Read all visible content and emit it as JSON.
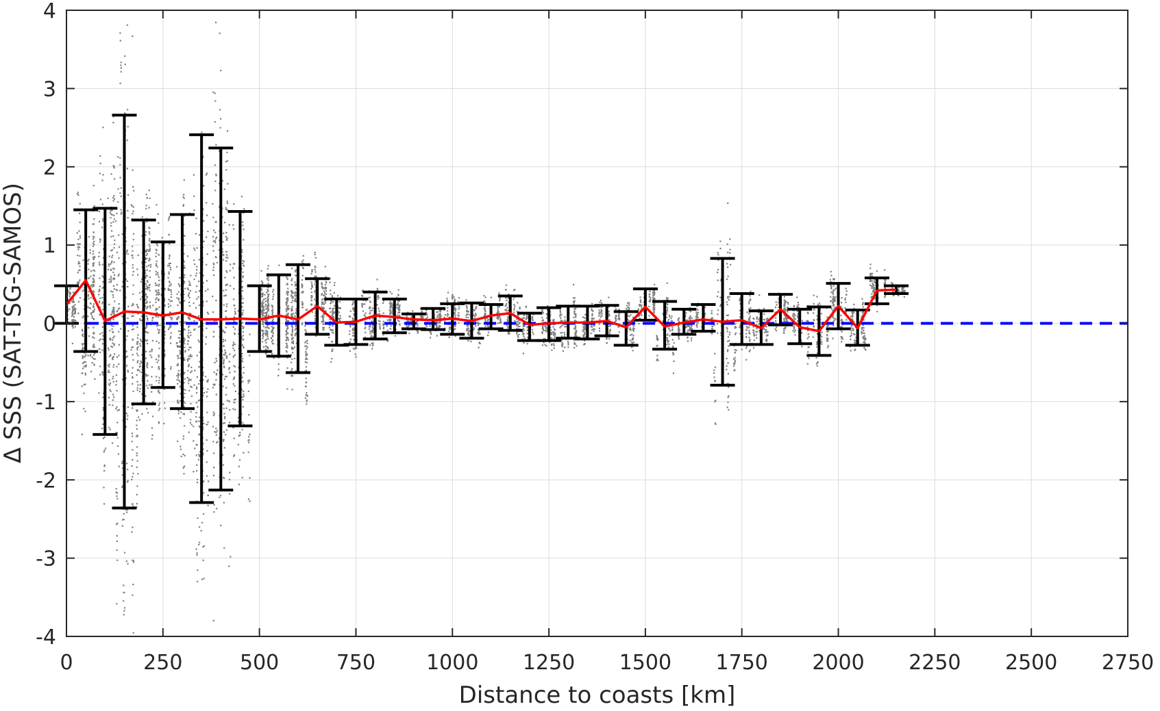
{
  "chart_data": {
    "type": "scatter",
    "xlabel": "Distance to coasts [km]",
    "ylabel": "Δ SSS (SAT-TSG-SAMOS)",
    "xlim": [
      0,
      2750
    ],
    "ylim": [
      -4,
      4
    ],
    "x_ticks": [
      "0",
      "250",
      "500",
      "750",
      "1000",
      "1250",
      "1500",
      "1750",
      "2000",
      "2250",
      "2500",
      "2750"
    ],
    "x_tick_values": [
      0,
      250,
      500,
      750,
      1000,
      1250,
      1500,
      1750,
      2000,
      2250,
      2500,
      2750
    ],
    "y_ticks": [
      "-4",
      "-3",
      "-2",
      "-1",
      "0",
      "1",
      "2",
      "3",
      "4"
    ],
    "y_tick_values": [
      -4,
      -3,
      -2,
      -1,
      0,
      1,
      2,
      3,
      4
    ],
    "grid": true,
    "colors": {
      "scatter": "#808080",
      "errorbar": "#000000",
      "mean_line": "#ff0000",
      "zero_line": "#0000ff",
      "grid": "#dcdcdc"
    },
    "zero_reference": {
      "y": 0,
      "style": "dashed"
    },
    "binned_stats": {
      "x": [
        0,
        50,
        100,
        150,
        200,
        250,
        300,
        350,
        400,
        450,
        500,
        550,
        600,
        650,
        700,
        750,
        800,
        850,
        900,
        950,
        1000,
        1050,
        1100,
        1150,
        1200,
        1250,
        1300,
        1350,
        1400,
        1450,
        1500,
        1550,
        1600,
        1650,
        1700,
        1750,
        1800,
        1850,
        1900,
        1950,
        2000,
        2050,
        2100,
        2150
      ],
      "mean": [
        0.24,
        0.55,
        0.03,
        0.15,
        0.14,
        0.1,
        0.14,
        0.05,
        0.05,
        0.06,
        0.05,
        0.1,
        0.05,
        0.22,
        0.01,
        0.02,
        0.1,
        0.08,
        0.05,
        0.04,
        0.06,
        0.03,
        0.1,
        0.13,
        -0.02,
        0.0,
        0.01,
        0.01,
        0.03,
        -0.05,
        0.21,
        -0.04,
        0.01,
        0.05,
        0.02,
        0.04,
        -0.06,
        0.18,
        -0.05,
        -0.1,
        0.22,
        -0.06,
        0.42,
        0.43
      ],
      "upper": [
        0.48,
        1.45,
        1.47,
        2.66,
        1.32,
        1.04,
        1.39,
        2.41,
        2.24,
        1.43,
        0.48,
        0.62,
        0.75,
        0.57,
        0.31,
        0.31,
        0.4,
        0.31,
        0.12,
        0.19,
        0.25,
        0.26,
        0.24,
        0.35,
        0.13,
        0.2,
        0.22,
        0.22,
        0.23,
        0.15,
        0.44,
        0.28,
        0.18,
        0.24,
        0.83,
        0.38,
        0.16,
        0.37,
        0.18,
        0.21,
        0.51,
        0.17,
        0.58,
        0.48
      ],
      "lower": [
        0.0,
        -0.36,
        -1.42,
        -2.36,
        -1.03,
        -0.82,
        -1.09,
        -2.29,
        -2.13,
        -1.31,
        -0.36,
        -0.42,
        -0.63,
        -0.14,
        -0.28,
        -0.27,
        -0.2,
        -0.12,
        -0.07,
        -0.08,
        -0.14,
        -0.19,
        -0.07,
        -0.09,
        -0.22,
        -0.22,
        -0.19,
        -0.2,
        -0.16,
        -0.28,
        0.04,
        -0.33,
        -0.14,
        -0.1,
        -0.79,
        -0.27,
        -0.27,
        -0.02,
        -0.26,
        -0.41,
        -0.07,
        -0.28,
        0.25,
        0.38
      ]
    }
  }
}
